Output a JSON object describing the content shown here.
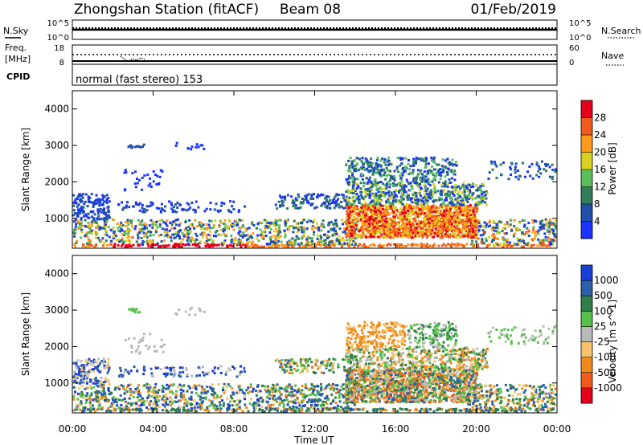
{
  "header": {
    "station": "Zhongshan Station (fitACF)",
    "beam": "Beam 08",
    "date": "01/Feb/2019"
  },
  "summary_panels": {
    "nsky": {
      "label": "N.Sky",
      "ticks": [
        "10^5",
        "10^0"
      ]
    },
    "nsearch": {
      "label": "N.Search",
      "ticks": [
        "10^5",
        "10^0"
      ]
    },
    "freq": {
      "label_line1": "Freq.",
      "label_line2": "[MHz]",
      "ticks": [
        "18",
        "8"
      ]
    },
    "nave": {
      "label": "Nave",
      "ticks": [
        "60",
        "0"
      ]
    },
    "cpid": {
      "label": "CPID",
      "mode_text": "normal (fast stereo) 153"
    }
  },
  "colors": {
    "power": [
      "#1a33ff",
      "#1f4fa8",
      "#2f7d5a",
      "#5abf5a",
      "#d8d21f",
      "#ff9a1a",
      "#f05a1a",
      "#e6001a"
    ],
    "velocity": [
      "#1a3fd6",
      "#2b5fa8",
      "#2f7d4a",
      "#57c04a",
      "#b9b9b9",
      "#f6c36a",
      "#f08a1a",
      "#f05a1a",
      "#e6001a"
    ]
  },
  "chart_data": [
    {
      "type": "heatmap",
      "title": "Power",
      "ylabel": "Slant Range [km]",
      "ylim": [
        180,
        4500
      ],
      "y_ticks": [
        "1000",
        "2000",
        "3000",
        "4000"
      ],
      "x_ticks": [
        "00:00",
        "04:00",
        "08:00",
        "12:00",
        "16:00",
        "20:00",
        "00:00"
      ],
      "colorbar": {
        "label": "Power [dB]",
        "ticks": [
          "4",
          "8",
          "12",
          "16",
          "20",
          "24",
          "28"
        ],
        "range": [
          0,
          32
        ]
      }
    },
    {
      "type": "heatmap",
      "title": "Velocity",
      "xlabel": "Time UT",
      "ylabel": "Slant Range [km]",
      "ylim": [
        180,
        4500
      ],
      "y_ticks": [
        "1000",
        "2000",
        "3000",
        "4000"
      ],
      "x_ticks": [
        "00:00",
        "04:00",
        "08:00",
        "12:00",
        "16:00",
        "20:00",
        "00:00"
      ],
      "colorbar": {
        "label": "Velocity [m s^-1]",
        "ticks": [
          "1000",
          "500",
          "100",
          "25",
          "-25",
          "-100",
          "-500",
          "-1000"
        ]
      }
    }
  ]
}
